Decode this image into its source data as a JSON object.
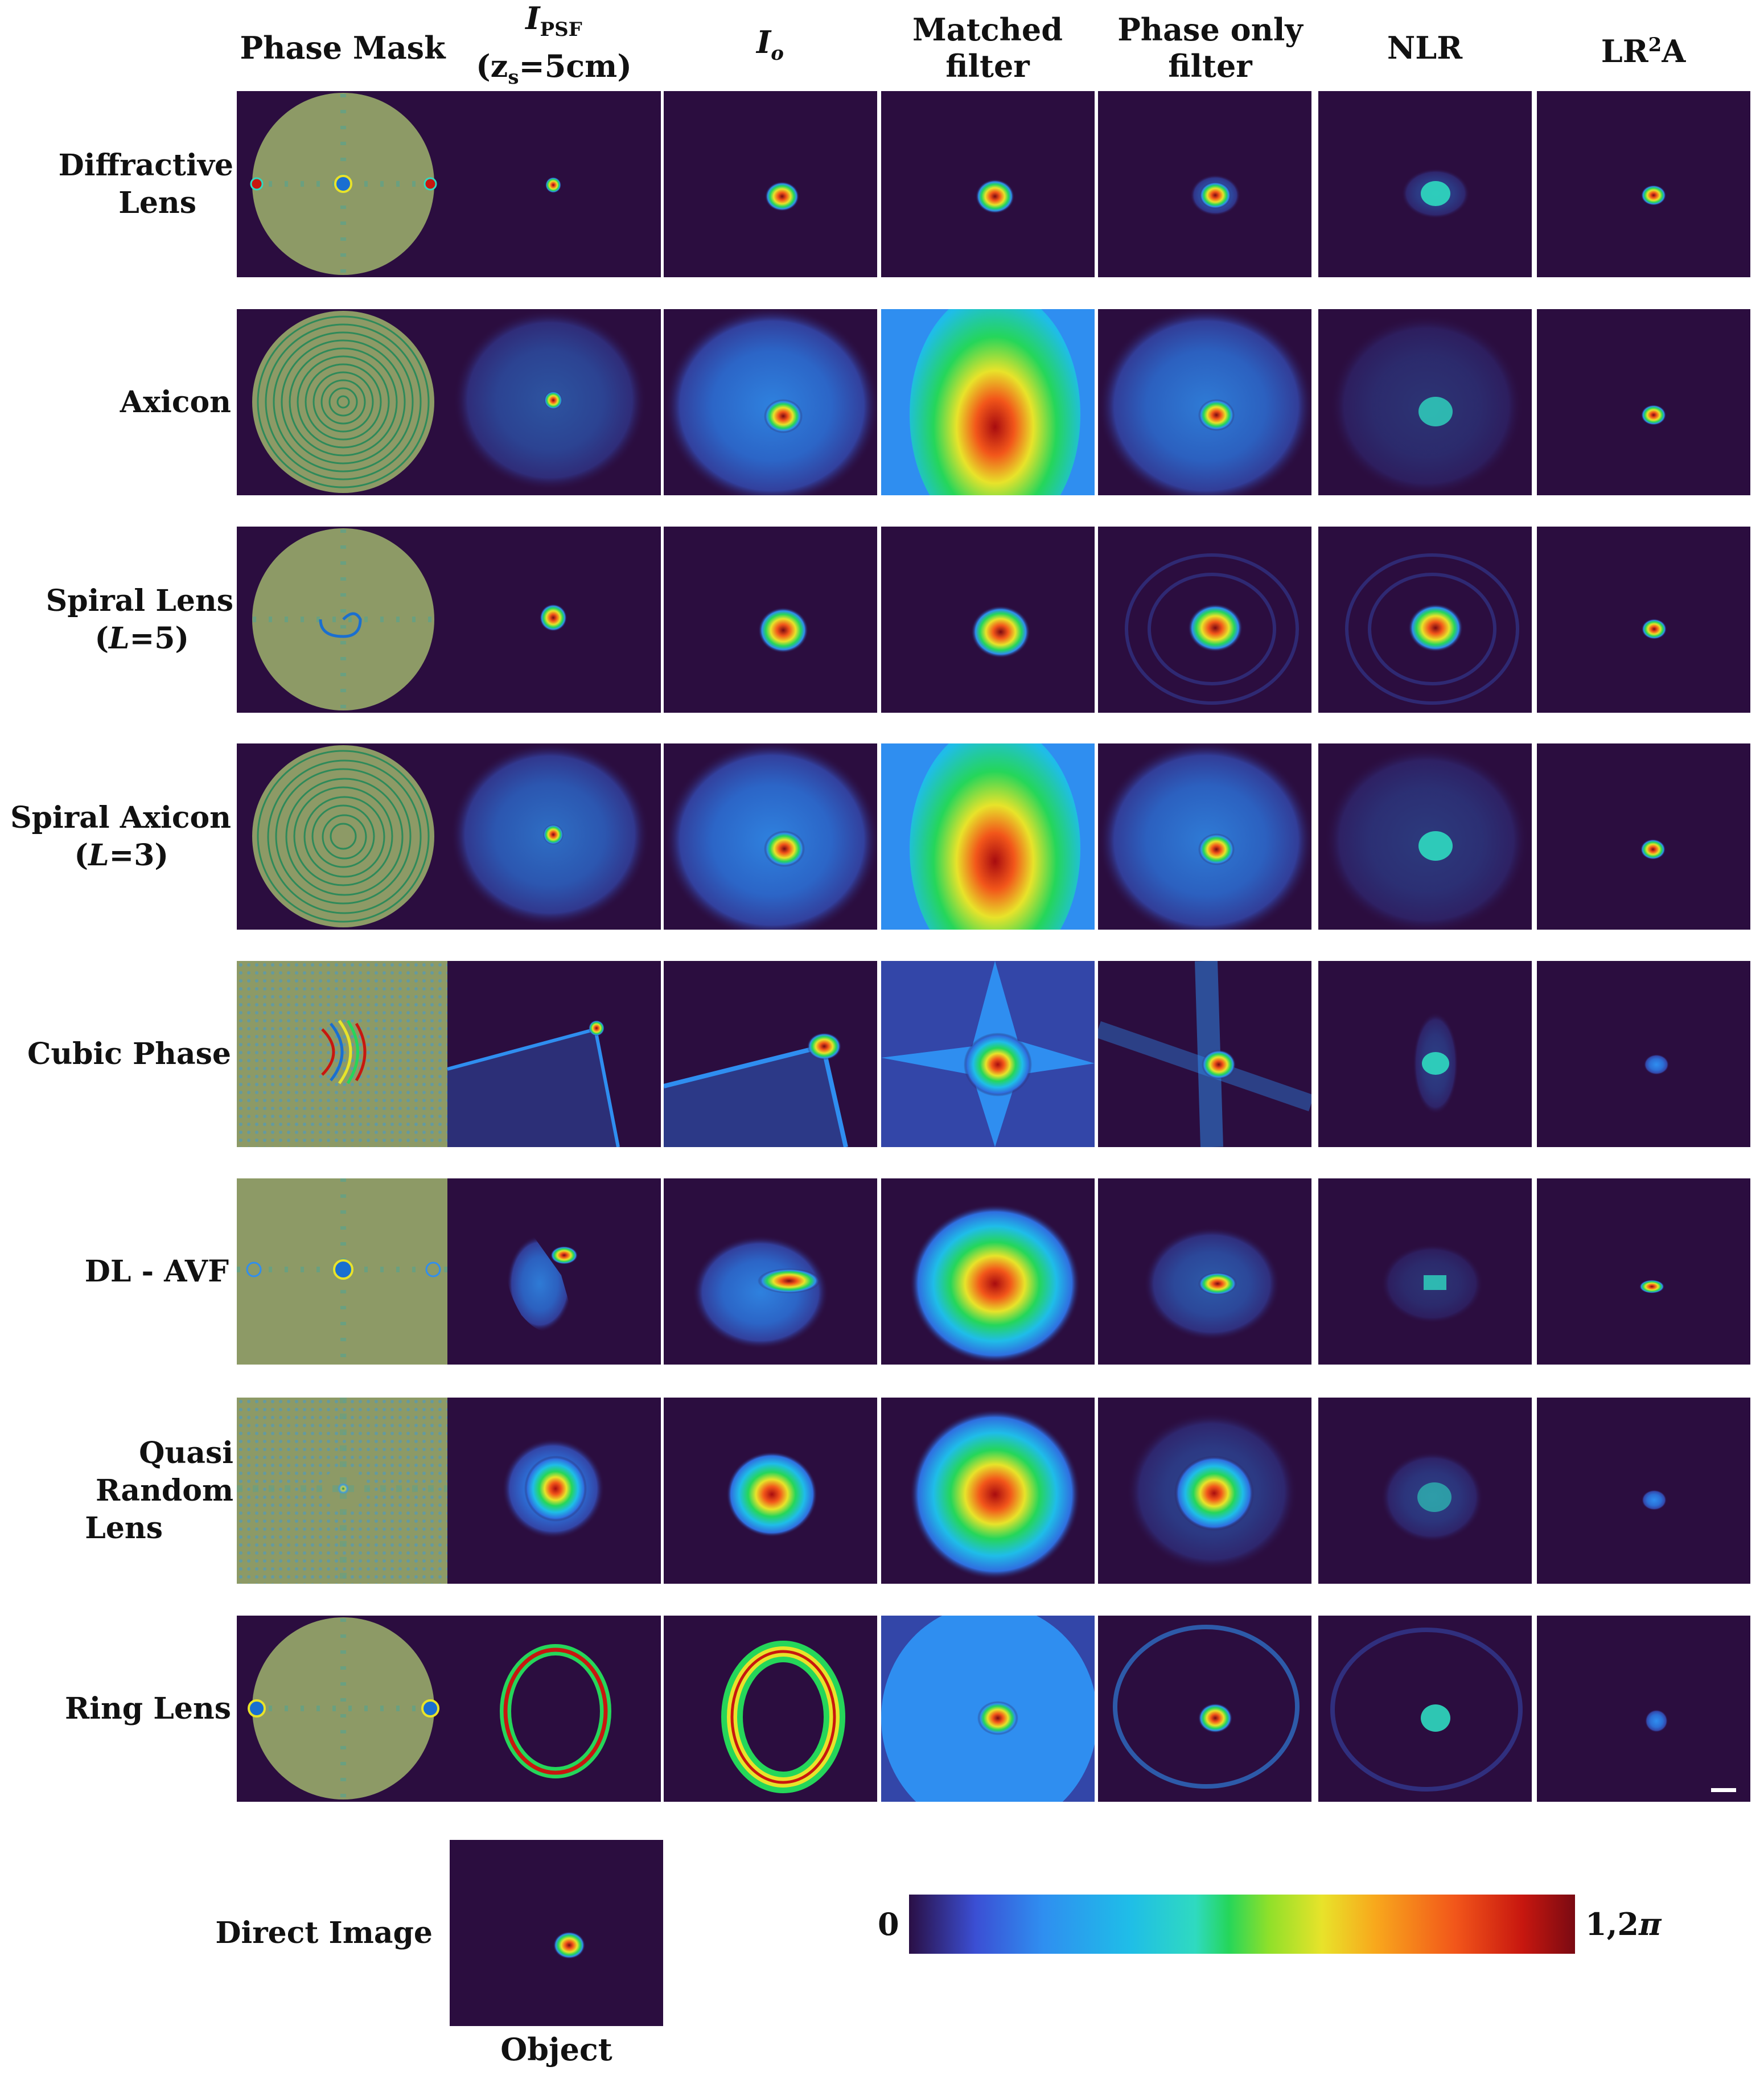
{
  "columns": {
    "phase_mask": "Phase Mask",
    "ipsf_symbol": "I",
    "ipsf_subscript": "PSF",
    "ipsf_condition": "(z",
    "ipsf_condition_sub": "s",
    "ipsf_condition_rest": "=5cm)",
    "io_symbol": "I",
    "io_subscript": "o",
    "matched_line1": "Matched",
    "matched_line2": "filter",
    "phase_only_line1": "Phase only",
    "phase_only_line2": "filter",
    "nlr": "NLR",
    "lr2a_prefix": "LR",
    "lr2a_sup": "2",
    "lr2a_suffix": "A"
  },
  "rows": {
    "diffractive_line1": "Diffractive",
    "diffractive_line2": "Lens",
    "axicon": "Axicon",
    "spiral_lens_line1": "Spiral Lens",
    "spiral_lens_open": "(",
    "spiral_lens_L": "L",
    "spiral_lens_val": "=5)",
    "spiral_axicon_line1": "Spiral Axicon",
    "spiral_axicon_open": "(",
    "spiral_axicon_L": "L",
    "spiral_axicon_val": "=3)",
    "cubic_phase": "Cubic Phase",
    "dl_avf": "DL - AVF",
    "quasi_line1": "Quasi Random",
    "quasi_line2": "Lens",
    "ring_lens": "Ring Lens",
    "direct_image": "Direct Image"
  },
  "object_label": "Object",
  "colorbar": {
    "min_label": "0",
    "max_label": "1,2",
    "max_symbol": "π",
    "colors": [
      "#2a0f45",
      "#3b4fd4",
      "#2f8ef0",
      "#1fbde8",
      "#25d65a",
      "#e8e32a",
      "#f2561a",
      "#7a0a12"
    ]
  }
}
